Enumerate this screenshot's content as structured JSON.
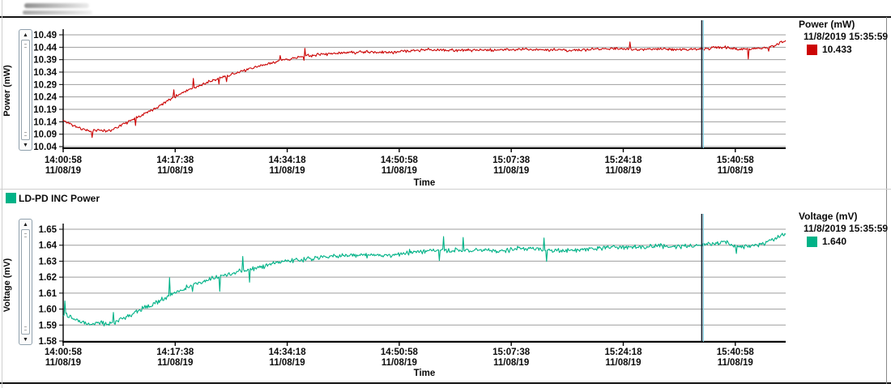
{
  "series_legend": {
    "label": "LD-PD INC Power",
    "swatch_color": "#00b287"
  },
  "colors": {
    "grid": "#9e9e9e",
    "axis": "#000000",
    "cursor_dark": "#16222e",
    "cursor_light": "#7bd0e4",
    "power_series": "#cc0505",
    "voltage_series": "#00b287"
  },
  "chart_data": [
    {
      "type": "line",
      "ylabel": "Power (mW)",
      "xlabel": "Time",
      "legend": {
        "title": "Power (mW)",
        "timestamp": "11/8/2019 15:35:59",
        "value": "10.433"
      },
      "yticks": [
        "10.49",
        "10.44",
        "10.39",
        "10.34",
        "10.29",
        "10.24",
        "10.19",
        "10.14",
        "10.09",
        "10.04"
      ],
      "ylim": [
        10.04,
        10.49
      ],
      "xticks": [
        {
          "time": "14:00:58",
          "date": "11/08/19"
        },
        {
          "time": "14:17:38",
          "date": "11/08/19"
        },
        {
          "time": "14:34:18",
          "date": "11/08/19"
        },
        {
          "time": "14:50:58",
          "date": "11/08/19"
        },
        {
          "time": "15:07:38",
          "date": "11/08/19"
        },
        {
          "time": "15:24:18",
          "date": "11/08/19"
        },
        {
          "time": "15:40:58",
          "date": "11/08/19"
        }
      ],
      "x_range_seconds": [
        0,
        6450
      ],
      "xtick_interval_seconds": 1000,
      "cursor": {
        "x_seconds": 5701,
        "time": "11/8/2019 15:35:59",
        "value": 10.433
      },
      "series": [
        {
          "name": "LD-PD INC Power",
          "unit": "mW",
          "color": "#cc0505",
          "trend": [
            [
              0,
              10.145
            ],
            [
              80,
              10.128
            ],
            [
              160,
              10.112
            ],
            [
              240,
              10.102
            ],
            [
              320,
              10.108
            ],
            [
              400,
              10.102
            ],
            [
              480,
              10.118
            ],
            [
              560,
              10.135
            ],
            [
              640,
              10.155
            ],
            [
              720,
              10.172
            ],
            [
              800,
              10.19
            ],
            [
              900,
              10.215
            ],
            [
              1000,
              10.243
            ],
            [
              1100,
              10.265
            ],
            [
              1200,
              10.283
            ],
            [
              1350,
              10.308
            ],
            [
              1500,
              10.33
            ],
            [
              1650,
              10.35
            ],
            [
              1800,
              10.37
            ],
            [
              1950,
              10.388
            ],
            [
              2100,
              10.4
            ],
            [
              2300,
              10.411
            ],
            [
              2500,
              10.418
            ],
            [
              2700,
              10.421
            ],
            [
              2900,
              10.419
            ],
            [
              3100,
              10.426
            ],
            [
              3300,
              10.43
            ],
            [
              3500,
              10.427
            ],
            [
              3700,
              10.43
            ],
            [
              3900,
              10.428
            ],
            [
              4100,
              10.433
            ],
            [
              4300,
              10.43
            ],
            [
              4500,
              10.427
            ],
            [
              4700,
              10.431
            ],
            [
              4900,
              10.435
            ],
            [
              5100,
              10.431
            ],
            [
              5300,
              10.434
            ],
            [
              5500,
              10.431
            ],
            [
              5700,
              10.433
            ],
            [
              5900,
              10.44
            ],
            [
              6050,
              10.431
            ],
            [
              6200,
              10.434
            ],
            [
              6350,
              10.446
            ],
            [
              6450,
              10.468
            ]
          ],
          "noise_amplitude": 0.0085,
          "spike_amplitude": 0.04,
          "samples": 850,
          "seed": 11,
          "clamp": [
            10.045,
            10.502
          ]
        }
      ]
    },
    {
      "type": "line",
      "ylabel": "Voltage (mV)",
      "xlabel": "Time",
      "legend": {
        "title": "Voltage (mV)",
        "timestamp": "11/8/2019 15:35:59",
        "value": "1.640"
      },
      "yticks": [
        "1.65",
        "1.64",
        "1.63",
        "1.62",
        "1.61",
        "1.60",
        "1.59",
        "1.58"
      ],
      "ylim": [
        1.58,
        1.65
      ],
      "xticks": [
        {
          "time": "14:00:58",
          "date": "11/08/19"
        },
        {
          "time": "14:17:38",
          "date": "11/08/19"
        },
        {
          "time": "14:34:18",
          "date": "11/08/19"
        },
        {
          "time": "14:50:58",
          "date": "11/08/19"
        },
        {
          "time": "15:07:38",
          "date": "11/08/19"
        },
        {
          "time": "15:24:18",
          "date": "11/08/19"
        },
        {
          "time": "15:40:58",
          "date": "11/08/19"
        }
      ],
      "x_range_seconds": [
        0,
        6450
      ],
      "xtick_interval_seconds": 1000,
      "cursor": {
        "x_seconds": 5701,
        "time": "11/8/2019 15:35:59",
        "value": 1.64
      },
      "series": [
        {
          "name": "LD-PD INC Power",
          "unit": "mV",
          "color": "#00b287",
          "trend": [
            [
              0,
              1.597
            ],
            [
              80,
              1.5945
            ],
            [
              160,
              1.592
            ],
            [
              240,
              1.5905
            ],
            [
              320,
              1.5915
            ],
            [
              400,
              1.5905
            ],
            [
              480,
              1.5925
            ],
            [
              560,
              1.595
            ],
            [
              640,
              1.598
            ],
            [
              720,
              1.6005
            ],
            [
              800,
              1.603
            ],
            [
              900,
              1.6065
            ],
            [
              1000,
              1.6105
            ],
            [
              1100,
              1.6135
            ],
            [
              1200,
              1.616
            ],
            [
              1350,
              1.6195
            ],
            [
              1500,
              1.622
            ],
            [
              1650,
              1.6245
            ],
            [
              1800,
              1.627
            ],
            [
              1950,
              1.6295
            ],
            [
              2100,
              1.631
            ],
            [
              2300,
              1.6325
            ],
            [
              2500,
              1.6335
            ],
            [
              2700,
              1.634
            ],
            [
              2900,
              1.6335
            ],
            [
              3100,
              1.6355
            ],
            [
              3300,
              1.637
            ],
            [
              3500,
              1.6365
            ],
            [
              3700,
              1.637
            ],
            [
              3900,
              1.6365
            ],
            [
              4100,
              1.638
            ],
            [
              4300,
              1.637
            ],
            [
              4500,
              1.6365
            ],
            [
              4700,
              1.6375
            ],
            [
              4900,
              1.639
            ],
            [
              5100,
              1.6385
            ],
            [
              5300,
              1.6395
            ],
            [
              5500,
              1.639
            ],
            [
              5700,
              1.64
            ],
            [
              5900,
              1.642
            ],
            [
              6050,
              1.639
            ],
            [
              6200,
              1.64
            ],
            [
              6350,
              1.644
            ],
            [
              6450,
              1.648
            ]
          ],
          "noise_amplitude": 0.0022,
          "spike_amplitude": 0.011,
          "samples": 850,
          "seed": 29,
          "clamp": [
            1.581,
            1.6545
          ]
        }
      ]
    }
  ]
}
